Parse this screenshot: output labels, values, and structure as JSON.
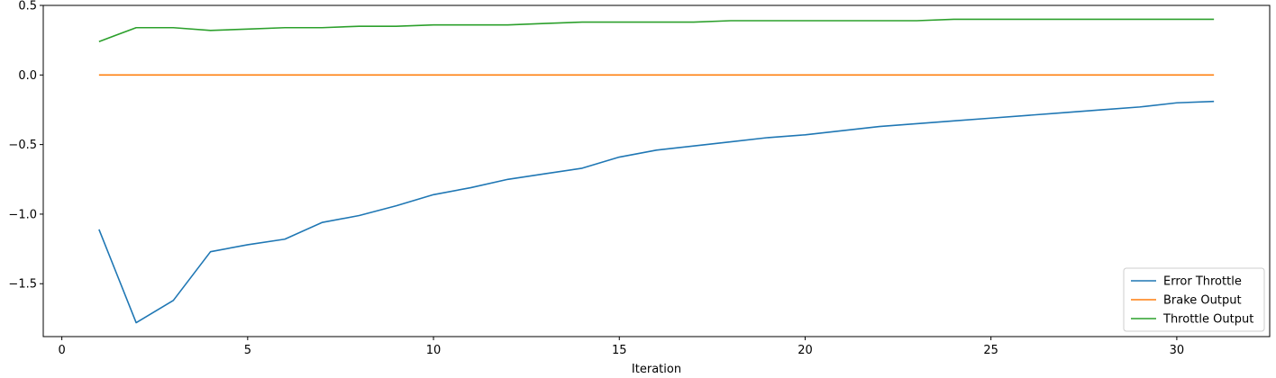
{
  "chart_data": {
    "type": "line",
    "title": "",
    "xlabel": "Iteration",
    "ylabel": "",
    "xlim": [
      -0.5,
      32.5
    ],
    "ylim": [
      -1.88,
      0.5
    ],
    "x_ticks": [
      0,
      5,
      10,
      15,
      20,
      25,
      30
    ],
    "x_tick_labels": [
      "0",
      "5",
      "10",
      "15",
      "20",
      "25",
      "30"
    ],
    "y_ticks": [
      0.5,
      0.0,
      -0.5,
      -1.0,
      -1.5
    ],
    "y_tick_labels": [
      "0.5",
      "0.0",
      "−0.5",
      "−1.0",
      "−1.5"
    ],
    "grid": false,
    "legend_position": "lower right",
    "x": [
      1,
      2,
      3,
      4,
      5,
      6,
      7,
      8,
      9,
      10,
      11,
      12,
      13,
      14,
      15,
      16,
      17,
      18,
      19,
      20,
      21,
      22,
      23,
      24,
      25,
      26,
      27,
      28,
      29,
      30,
      31
    ],
    "series": [
      {
        "name": "Error Throttle",
        "color": "#1f77b4",
        "values": [
          -1.11,
          -1.78,
          -1.62,
          -1.27,
          -1.22,
          -1.18,
          -1.06,
          -1.01,
          -0.94,
          -0.86,
          -0.81,
          -0.75,
          -0.71,
          -0.67,
          -0.59,
          -0.54,
          -0.51,
          -0.48,
          -0.45,
          -0.43,
          -0.4,
          -0.37,
          -0.35,
          -0.33,
          -0.31,
          -0.29,
          -0.27,
          -0.25,
          -0.23,
          -0.2,
          -0.19
        ]
      },
      {
        "name": "Brake Output",
        "color": "#ff7f0e",
        "values": [
          0,
          0,
          0,
          0,
          0,
          0,
          0,
          0,
          0,
          0,
          0,
          0,
          0,
          0,
          0,
          0,
          0,
          0,
          0,
          0,
          0,
          0,
          0,
          0,
          0,
          0,
          0,
          0,
          0,
          0,
          0
        ]
      },
      {
        "name": "Throttle Output",
        "color": "#2ca02c",
        "values": [
          0.24,
          0.34,
          0.34,
          0.32,
          0.33,
          0.34,
          0.34,
          0.35,
          0.35,
          0.36,
          0.36,
          0.36,
          0.37,
          0.38,
          0.38,
          0.38,
          0.38,
          0.39,
          0.39,
          0.39,
          0.39,
          0.39,
          0.39,
          0.4,
          0.4,
          0.4,
          0.4,
          0.4,
          0.4,
          0.4,
          0.4
        ]
      }
    ]
  }
}
